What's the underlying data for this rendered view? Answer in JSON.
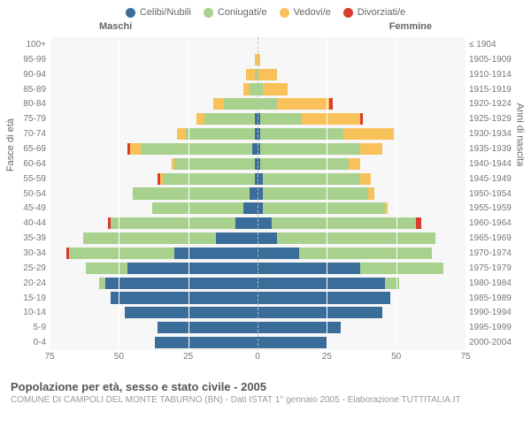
{
  "legend": {
    "items": [
      {
        "label": "Celibi/Nubili",
        "color": "#3a6d9a"
      },
      {
        "label": "Coniugati/e",
        "color": "#a8d18d"
      },
      {
        "label": "Vedovi/e",
        "color": "#f9c159"
      },
      {
        "label": "Divorziati/e",
        "color": "#d73c2c"
      }
    ]
  },
  "gender": {
    "male": "Maschi",
    "female": "Femmine"
  },
  "axes": {
    "left_title": "Fasce di età",
    "right_title": "Anni di nascita",
    "x_ticks": [
      75,
      50,
      25,
      0,
      25,
      50,
      75
    ],
    "x_max": 75
  },
  "colors": {
    "single": "#3a6d9a",
    "married": "#a8d18d",
    "widowed": "#f9c159",
    "divorced": "#d73c2c",
    "plot_bg": "#f7f7f7",
    "grid": "#ffffff"
  },
  "rows": [
    {
      "age": "100+",
      "birth": "≤ 1904",
      "m": [
        0,
        0,
        0,
        0
      ],
      "f": [
        0,
        0,
        0,
        0
      ]
    },
    {
      "age": "95-99",
      "birth": "1905-1909",
      "m": [
        0,
        0,
        1,
        0
      ],
      "f": [
        0,
        0,
        1,
        0
      ]
    },
    {
      "age": "90-94",
      "birth": "1910-1914",
      "m": [
        0,
        1,
        3,
        0
      ],
      "f": [
        0,
        0,
        7,
        0
      ]
    },
    {
      "age": "85-89",
      "birth": "1915-1919",
      "m": [
        0,
        3,
        2,
        0
      ],
      "f": [
        0,
        2,
        9,
        0
      ]
    },
    {
      "age": "80-84",
      "birth": "1920-1924",
      "m": [
        0,
        12,
        4,
        0
      ],
      "f": [
        0,
        7,
        19,
        1
      ]
    },
    {
      "age": "75-79",
      "birth": "1925-1929",
      "m": [
        1,
        18,
        3,
        0
      ],
      "f": [
        1,
        15,
        21,
        1
      ]
    },
    {
      "age": "70-74",
      "birth": "1930-1934",
      "m": [
        1,
        25,
        3,
        0
      ],
      "f": [
        1,
        30,
        18,
        0
      ]
    },
    {
      "age": "65-69",
      "birth": "1935-1939",
      "m": [
        2,
        40,
        4,
        1
      ],
      "f": [
        1,
        36,
        8,
        0
      ]
    },
    {
      "age": "60-64",
      "birth": "1940-1944",
      "m": [
        1,
        29,
        1,
        0
      ],
      "f": [
        1,
        32,
        4,
        0
      ]
    },
    {
      "age": "55-59",
      "birth": "1945-1949",
      "m": [
        1,
        33,
        1,
        1
      ],
      "f": [
        2,
        35,
        4,
        0
      ]
    },
    {
      "age": "50-54",
      "birth": "1950-1954",
      "m": [
        3,
        42,
        0,
        0
      ],
      "f": [
        2,
        38,
        2,
        0
      ]
    },
    {
      "age": "45-49",
      "birth": "1955-1959",
      "m": [
        5,
        33,
        0,
        0
      ],
      "f": [
        2,
        44,
        1,
        0
      ]
    },
    {
      "age": "40-44",
      "birth": "1960-1964",
      "m": [
        8,
        45,
        0,
        1
      ],
      "f": [
        5,
        52,
        0,
        2
      ]
    },
    {
      "age": "35-39",
      "birth": "1965-1969",
      "m": [
        15,
        48,
        0,
        0
      ],
      "f": [
        7,
        57,
        0,
        0
      ]
    },
    {
      "age": "30-34",
      "birth": "1970-1974",
      "m": [
        30,
        38,
        0,
        1
      ],
      "f": [
        15,
        48,
        0,
        0
      ]
    },
    {
      "age": "25-29",
      "birth": "1975-1979",
      "m": [
        47,
        15,
        0,
        0
      ],
      "f": [
        37,
        30,
        0,
        0
      ]
    },
    {
      "age": "20-24",
      "birth": "1980-1984",
      "m": [
        55,
        2,
        0,
        0
      ],
      "f": [
        46,
        5,
        0,
        0
      ]
    },
    {
      "age": "15-19",
      "birth": "1985-1989",
      "m": [
        53,
        0,
        0,
        0
      ],
      "f": [
        48,
        0,
        0,
        0
      ]
    },
    {
      "age": "10-14",
      "birth": "1990-1994",
      "m": [
        48,
        0,
        0,
        0
      ],
      "f": [
        45,
        0,
        0,
        0
      ]
    },
    {
      "age": "5-9",
      "birth": "1995-1999",
      "m": [
        36,
        0,
        0,
        0
      ],
      "f": [
        30,
        0,
        0,
        0
      ]
    },
    {
      "age": "0-4",
      "birth": "2000-2004",
      "m": [
        37,
        0,
        0,
        0
      ],
      "f": [
        25,
        0,
        0,
        0
      ]
    }
  ],
  "footer": {
    "title": "Popolazione per età, sesso e stato civile - 2005",
    "sub": "COMUNE DI CAMPOLI DEL MONTE TABURNO (BN) - Dati ISTAT 1° gennaio 2005 - Elaborazione TUTTITALIA.IT"
  }
}
